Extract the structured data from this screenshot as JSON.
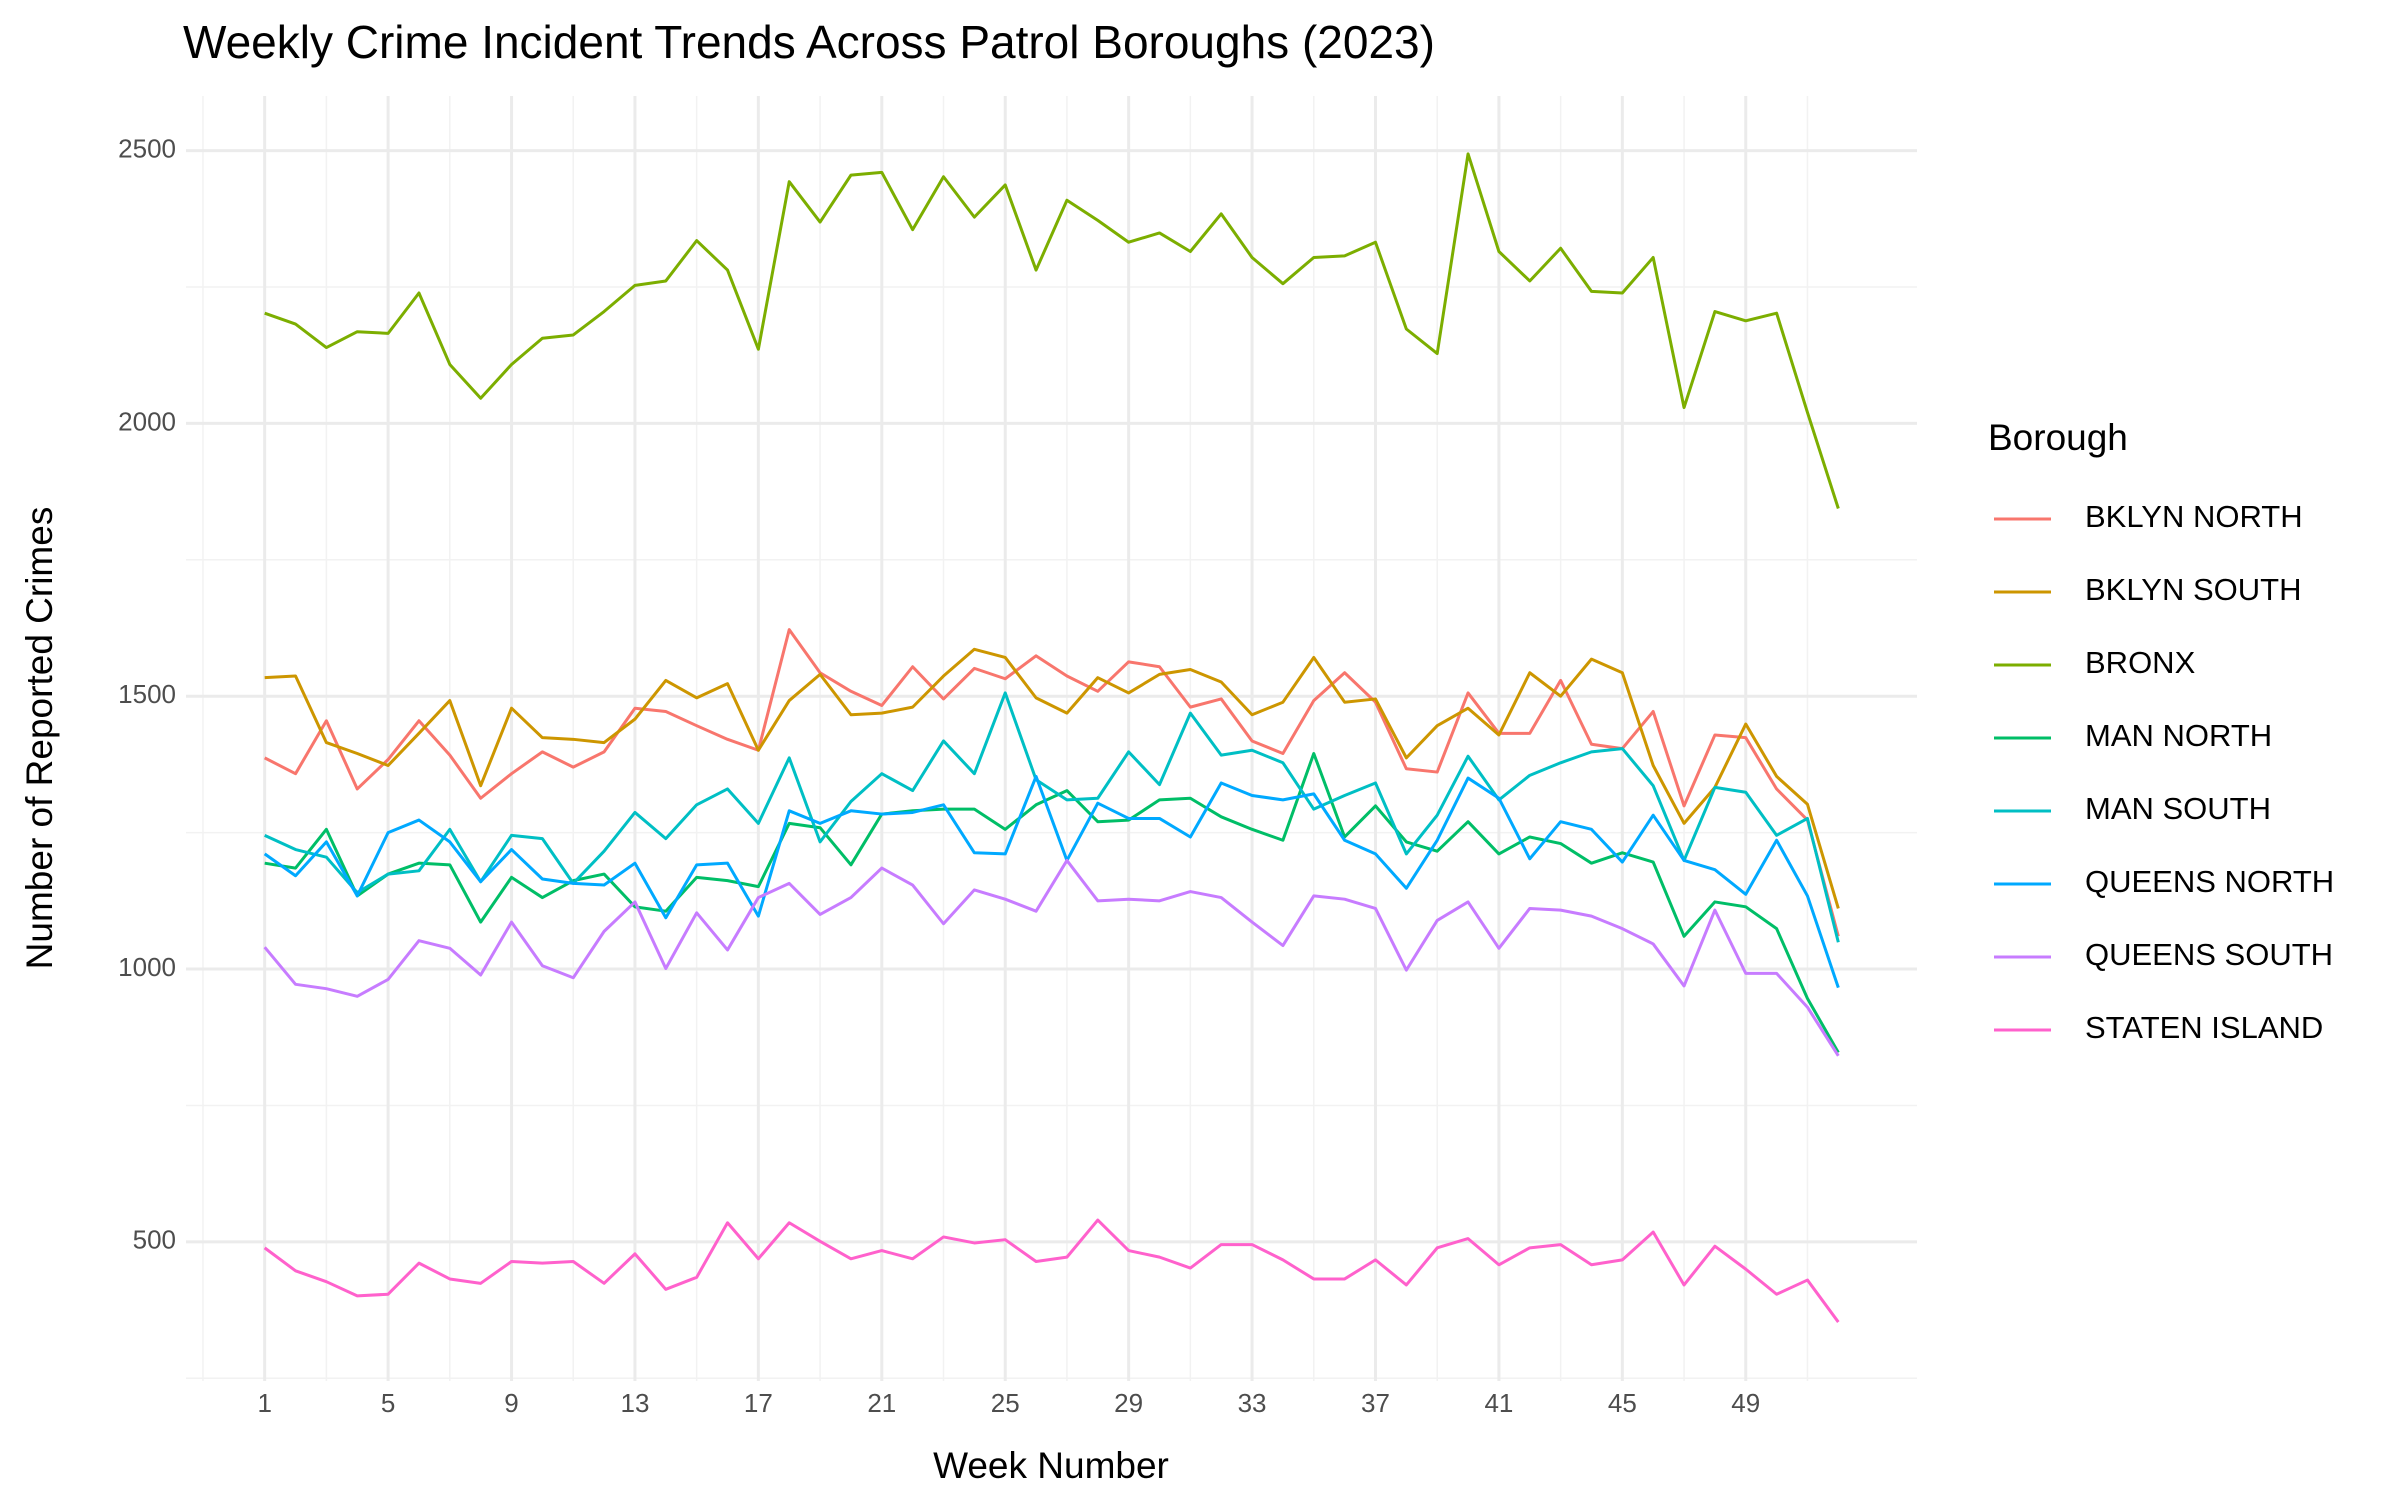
{
  "chart_data": {
    "type": "line",
    "title": "Weekly Crime Incident Trends Across Patrol Boroughs (2023)",
    "x_label": "Week Number",
    "y_label": "Number of Reported Crimes",
    "legend_title": "Borough",
    "legend_position": "right",
    "grid": true,
    "x": [
      1,
      2,
      3,
      4,
      5,
      6,
      7,
      8,
      9,
      10,
      11,
      12,
      13,
      14,
      15,
      16,
      17,
      18,
      19,
      20,
      21,
      22,
      23,
      24,
      25,
      26,
      27,
      28,
      29,
      30,
      31,
      32,
      33,
      34,
      35,
      36,
      37,
      38,
      39,
      40,
      41,
      42,
      43,
      44,
      45,
      46,
      47,
      48,
      49,
      50,
      51,
      52
    ],
    "xlim": [
      -1.55,
      54.55
    ],
    "xticks": [
      1,
      5,
      9,
      13,
      17,
      21,
      25,
      29,
      33,
      37,
      41,
      45,
      49
    ],
    "ylim": [
      245,
      2600
    ],
    "yticks": [
      500,
      1000,
      1500,
      2000,
      2500
    ],
    "series": [
      {
        "name": "BKLYN NORTH",
        "color": "#F8766D",
        "values": [
          1387,
          1358,
          1455,
          1330,
          1384,
          1455,
          1392,
          1313,
          1358,
          1398,
          1370,
          1398,
          1478,
          1472,
          1446,
          1421,
          1401,
          1622,
          1543,
          1509,
          1483,
          1554,
          1495,
          1551,
          1532,
          1574,
          1537,
          1509,
          1563,
          1554,
          1480,
          1495,
          1418,
          1395,
          1492,
          1543,
          1489,
          1367,
          1361,
          1506,
          1432,
          1432,
          1529,
          1412,
          1404,
          1472,
          1299,
          1429,
          1424,
          1330,
          1273,
          1060
        ]
      },
      {
        "name": "BKLYN SOUTH",
        "color": "#CD9600",
        "values": [
          1534,
          1537,
          1415,
          1395,
          1373,
          1432,
          1492,
          1336,
          1478,
          1424,
          1421,
          1415,
          1458,
          1529,
          1497,
          1523,
          1401,
          1492,
          1540,
          1466,
          1469,
          1480,
          1537,
          1586,
          1571,
          1497,
          1469,
          1534,
          1506,
          1540,
          1549,
          1526,
          1466,
          1489,
          1571,
          1489,
          1495,
          1387,
          1446,
          1478,
          1429,
          1543,
          1500,
          1568,
          1543,
          1373,
          1267,
          1333,
          1449,
          1353,
          1302,
          1111
        ]
      },
      {
        "name": "BRONX",
        "color": "#7CAE00",
        "values": [
          2202,
          2182,
          2139,
          2168,
          2165,
          2239,
          2108,
          2046,
          2108,
          2156,
          2162,
          2205,
          2253,
          2261,
          2335,
          2281,
          2136,
          2443,
          2369,
          2455,
          2460,
          2355,
          2452,
          2378,
          2437,
          2281,
          2409,
          2372,
          2332,
          2349,
          2315,
          2384,
          2304,
          2256,
          2304,
          2307,
          2332,
          2173,
          2128,
          2494,
          2315,
          2261,
          2321,
          2242,
          2239,
          2304,
          2029,
          2205,
          2188,
          2202,
          2020,
          1844
        ]
      },
      {
        "name": "MAN NORTH",
        "color": "#00BE67",
        "values": [
          1194,
          1185,
          1256,
          1134,
          1174,
          1194,
          1191,
          1086,
          1168,
          1131,
          1162,
          1174,
          1114,
          1106,
          1168,
          1162,
          1151,
          1267,
          1259,
          1191,
          1284,
          1290,
          1293,
          1293,
          1256,
          1301,
          1327,
          1270,
          1273,
          1310,
          1313,
          1279,
          1256,
          1236,
          1395,
          1242,
          1299,
          1233,
          1216,
          1270,
          1211,
          1242,
          1230,
          1194,
          1213,
          1196,
          1060,
          1123,
          1114,
          1074,
          946,
          847
        ]
      },
      {
        "name": "MAN SOUTH",
        "color": "#00BFC4",
        "values": [
          1245,
          1219,
          1205,
          1140,
          1174,
          1180,
          1256,
          1160,
          1245,
          1239,
          1157,
          1216,
          1287,
          1239,
          1301,
          1330,
          1267,
          1387,
          1233,
          1307,
          1358,
          1327,
          1418,
          1358,
          1506,
          1347,
          1310,
          1313,
          1398,
          1338,
          1469,
          1392,
          1401,
          1378,
          1293,
          1318,
          1341,
          1211,
          1282,
          1390,
          1310,
          1355,
          1378,
          1398,
          1404,
          1336,
          1199,
          1333,
          1324,
          1245,
          1276,
          1049
        ]
      },
      {
        "name": "QUEENS NORTH",
        "color": "#00A9FF",
        "values": [
          1211,
          1171,
          1233,
          1134,
          1250,
          1273,
          1233,
          1160,
          1219,
          1165,
          1157,
          1154,
          1194,
          1094,
          1191,
          1194,
          1097,
          1290,
          1267,
          1290,
          1284,
          1287,
          1301,
          1213,
          1211,
          1353,
          1199,
          1304,
          1276,
          1276,
          1242,
          1341,
          1318,
          1310,
          1321,
          1236,
          1211,
          1148,
          1236,
          1350,
          1313,
          1202,
          1270,
          1256,
          1196,
          1282,
          1199,
          1182,
          1137,
          1236,
          1134,
          966
        ]
      },
      {
        "name": "QUEENS SOUTH",
        "color": "#C77CFF",
        "values": [
          1040,
          972,
          964,
          950,
          981,
          1052,
          1038,
          989,
          1086,
          1006,
          984,
          1069,
          1123,
          1001,
          1103,
          1035,
          1131,
          1157,
          1100,
          1131,
          1185,
          1154,
          1083,
          1145,
          1128,
          1106,
          1199,
          1125,
          1128,
          1125,
          1142,
          1131,
          1086,
          1043,
          1134,
          1128,
          1111,
          998,
          1089,
          1123,
          1038,
          1111,
          1108,
          1097,
          1074,
          1046,
          969,
          1108,
          992,
          992,
          930,
          841
        ]
      },
      {
        "name": "STATEN ISLAND",
        "color": "#FF61CC",
        "values": [
          489,
          447,
          427,
          401,
          404,
          461,
          432,
          424,
          464,
          461,
          464,
          424,
          478,
          413,
          435,
          535,
          469,
          535,
          501,
          469,
          484,
          469,
          509,
          498,
          504,
          464,
          472,
          540,
          484,
          472,
          452,
          495,
          495,
          467,
          432,
          432,
          467,
          421,
          489,
          506,
          458,
          489,
          495,
          458,
          467,
          518,
          421,
          492,
          450,
          404,
          430,
          353
        ]
      }
    ]
  }
}
